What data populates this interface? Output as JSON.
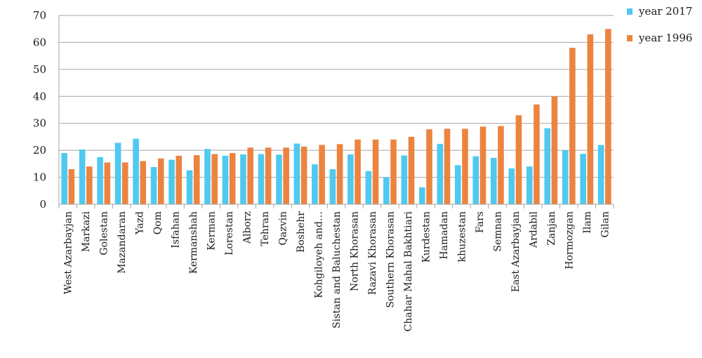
{
  "chart_data": {
    "type": "bar",
    "title": "",
    "xlabel": "",
    "ylabel": "",
    "ylim": [
      0,
      70
    ],
    "yticks": [
      0,
      10,
      20,
      30,
      40,
      50,
      60,
      70
    ],
    "grid": true,
    "legend_position": "top-right",
    "categories": [
      "West Azarbayjan",
      "Markazi",
      "Golestan",
      "Mazandaran",
      "Yazd",
      "Qom",
      "Isfahan",
      "Kermanshah",
      "Kerman",
      "Lorestan",
      "Alborz",
      "Tehran",
      "Qazvin",
      "Boshehr",
      "Kohgiloyeh and…",
      "Sistan and Baluchestan",
      "North Khorasan",
      "Razavi Khorasan",
      "Southern Khorasan",
      "Chahar Mahal Bakhtiari",
      "Kurdestan",
      "Hamadan",
      "khuzestan",
      "Fars",
      "Semnan",
      "East Azarbayjan",
      "Ardabil",
      "Zanjan",
      "Hormozgan",
      "Ilam",
      "Gilan"
    ],
    "series": [
      {
        "name": "year 2017",
        "color": "#4fc9f0",
        "values": [
          19,
          20.3,
          17.5,
          22.8,
          24.3,
          13.8,
          16.5,
          12.6,
          20.5,
          18,
          18.5,
          18.6,
          18.4,
          22.5,
          14.8,
          13,
          18.5,
          12.3,
          10,
          18.1,
          6.3,
          22.4,
          14.5,
          17.8,
          17.2,
          13.3,
          14,
          28.2,
          20,
          18.7,
          22
        ]
      },
      {
        "name": "year 1996",
        "color": "#ec8440",
        "values": [
          13,
          14,
          15.5,
          15.5,
          16,
          17,
          18,
          18.2,
          18.6,
          19,
          21,
          21,
          21,
          21.4,
          22,
          22.3,
          24,
          24,
          24,
          25,
          27.8,
          28,
          28,
          28.8,
          29,
          33,
          37,
          40,
          58,
          63,
          65
        ]
      }
    ]
  }
}
